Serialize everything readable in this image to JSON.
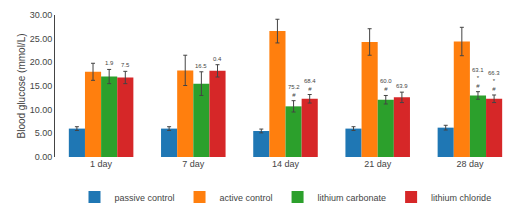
{
  "chart_data": {
    "type": "bar",
    "categories": [
      "1 day",
      "7 day",
      "14 day",
      "21 day",
      "28 day"
    ],
    "series": [
      {
        "name": "passive control",
        "values": [
          6.0,
          6.0,
          5.5,
          6.0,
          6.2
        ],
        "errors": [
          0.4,
          0.4,
          0.4,
          0.4,
          0.5
        ]
      },
      {
        "name": "active control",
        "values": [
          18.0,
          18.3,
          26.6,
          24.3,
          24.4
        ],
        "errors": [
          1.8,
          3.2,
          2.5,
          2.8,
          3.0
        ]
      },
      {
        "name": "lithium carbonate",
        "values": [
          17.0,
          15.5,
          10.7,
          12.1,
          13.0
        ],
        "errors": [
          1.5,
          2.5,
          1.2,
          0.9,
          0.8
        ],
        "annotations": [
          "1.9",
          "16.5",
          "75.2\n#",
          "60.0\n#",
          "63.1\n*\n#"
        ]
      },
      {
        "name": "lithium chloride",
        "values": [
          16.8,
          18.2,
          12.3,
          12.6,
          12.3
        ],
        "errors": [
          1.3,
          1.3,
          0.9,
          1.1,
          0.8
        ],
        "annotations": [
          "7.5",
          "0.4",
          "68.4\n#",
          "63.9",
          "66.3\n*\n#"
        ]
      }
    ],
    "ylabel": "Blood glucose (mmol/L)",
    "ylim": [
      0,
      30
    ],
    "yticks": [
      {
        "value": 0,
        "label": "0.00"
      },
      {
        "value": 5,
        "label": "5.00"
      },
      {
        "value": 10,
        "label": "10.00"
      },
      {
        "value": 15,
        "label": "15.00"
      },
      {
        "value": 20,
        "label": "20.00"
      },
      {
        "value": 25,
        "label": "25.00"
      },
      {
        "value": 30,
        "label": "30.00"
      }
    ],
    "grid": false,
    "legend": "bottom"
  }
}
